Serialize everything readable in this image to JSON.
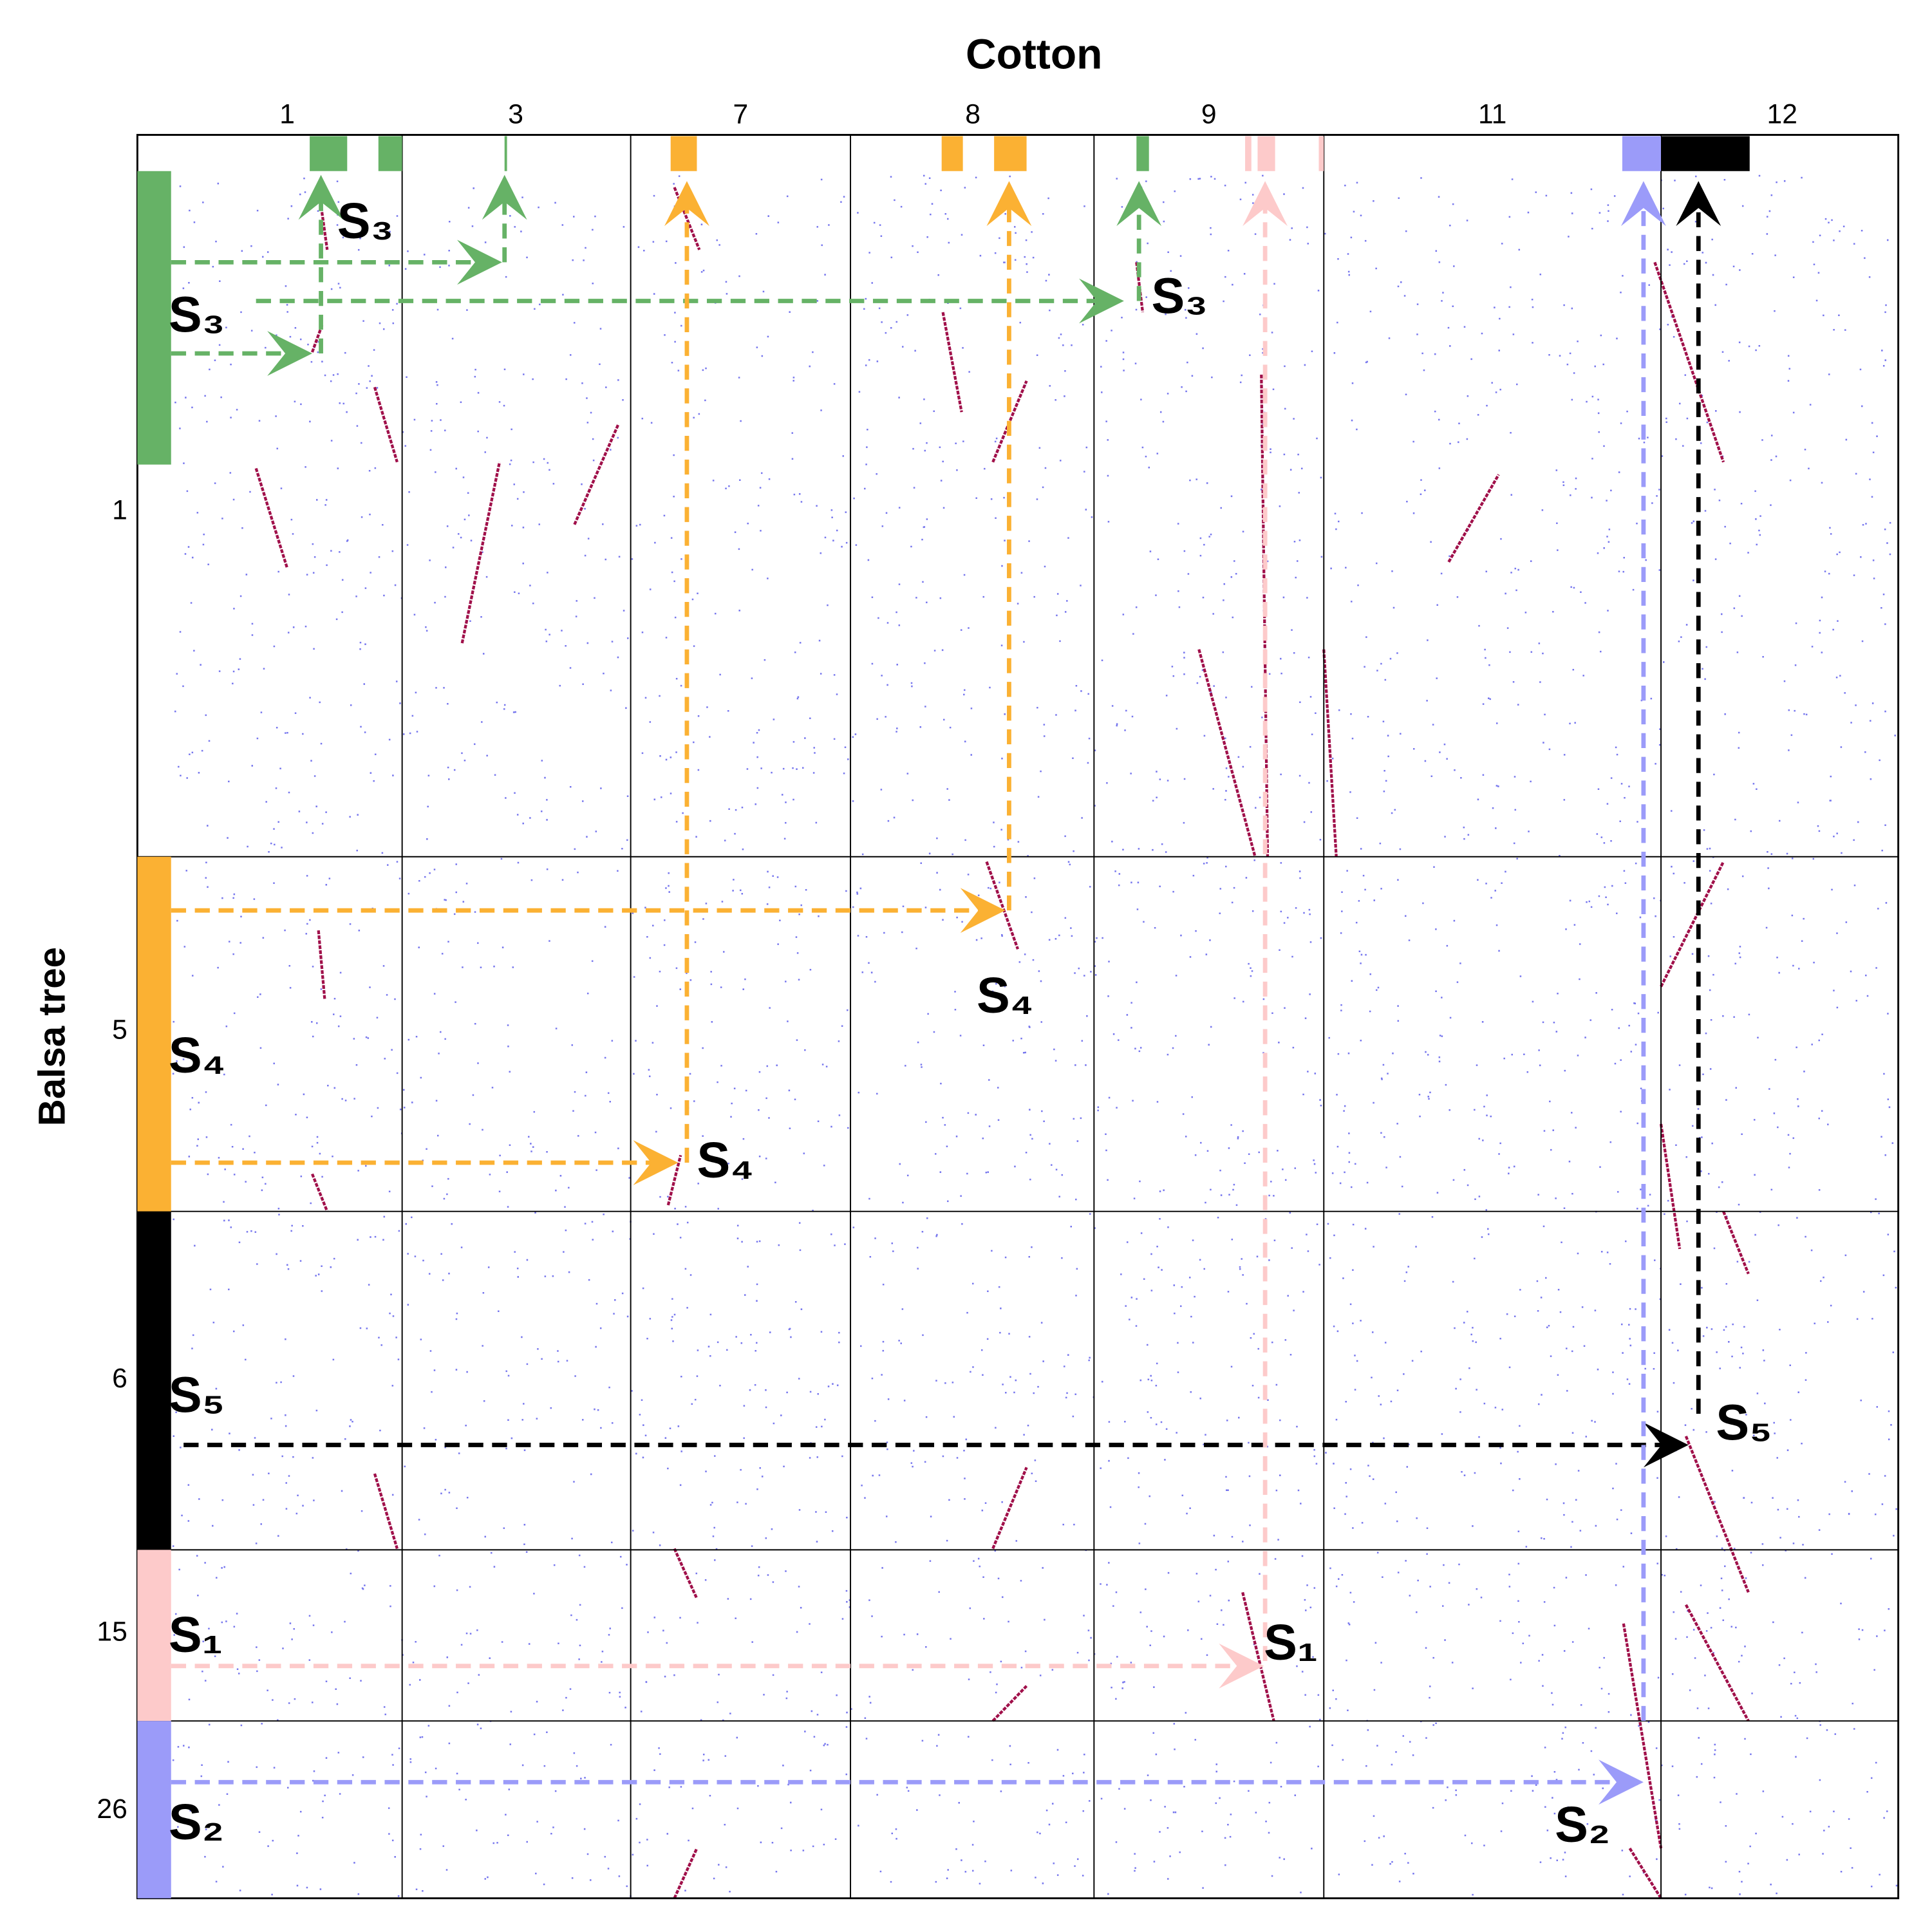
{
  "title": "Cotton",
  "y_axis_label": "Balsa tree",
  "columns": [
    "1",
    "3",
    "7",
    "8",
    "9",
    "11",
    "12"
  ],
  "rows": [
    "1",
    "5",
    "6",
    "15",
    "26"
  ],
  "segment_labels": [
    "S₃",
    "S₃",
    "S₃",
    "S₄",
    "S₄",
    "S₄",
    "S₅",
    "S₅",
    "S₁",
    "S₁",
    "S₂",
    "S₂"
  ]
}
